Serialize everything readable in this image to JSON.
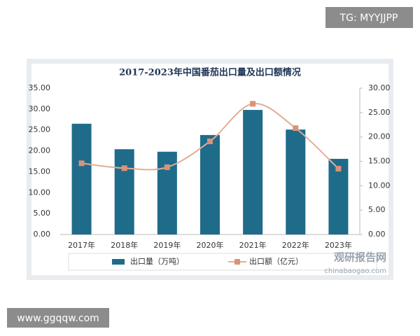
{
  "overlays": {
    "top": "TG: MYYJJPP",
    "bottom": "www.ggqqw.com"
  },
  "chart_data": {
    "type": "combo",
    "title": "2017-2023年中国番茄出口量及出口额情况",
    "categories": [
      "2017年",
      "2018年",
      "2019年",
      "2020年",
      "2021年",
      "2022年",
      "2023年"
    ],
    "series": [
      {
        "name": "出口量（万吨）",
        "type": "bar",
        "color": "#1f6b8a",
        "values": [
          26.5,
          20.4,
          19.8,
          23.8,
          29.8,
          25.1,
          18.1
        ]
      },
      {
        "name": "出口额（亿元）",
        "type": "line",
        "axis": "y2",
        "color": "#e3ad97",
        "marker_color": "#d99378",
        "smooth": true,
        "values": [
          14.6,
          13.6,
          13.8,
          19.1,
          26.8,
          21.8,
          13.5
        ]
      }
    ],
    "ylim": [
      0,
      35
    ],
    "yticks": [
      {
        "value": 0,
        "label": "0.00"
      },
      {
        "value": 5,
        "label": "5.00"
      },
      {
        "value": 10,
        "label": "10.00"
      },
      {
        "value": 15,
        "label": "15.00"
      },
      {
        "value": 20,
        "label": "20.00"
      },
      {
        "value": 25,
        "label": "25.00"
      },
      {
        "value": 30,
        "label": "30.00"
      },
      {
        "value": 35,
        "label": "35.00"
      }
    ],
    "y2lim": [
      0,
      30
    ],
    "y2ticks": [
      {
        "value": 0,
        "label": "0.00"
      },
      {
        "value": 5,
        "label": "5.00"
      },
      {
        "value": 10,
        "label": "10.00"
      },
      {
        "value": 15,
        "label": "15.00"
      },
      {
        "value": 20,
        "label": "20.00"
      },
      {
        "value": 25,
        "label": "25.00"
      },
      {
        "value": 30,
        "label": "30.00"
      }
    ],
    "grid": false,
    "legend": "bottom",
    "source_logo": "观研报告网",
    "source_url": "chinabaogao.com"
  }
}
